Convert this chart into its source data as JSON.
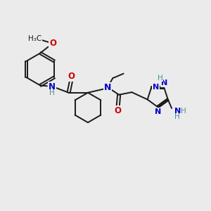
{
  "background_color": "#ebebeb",
  "bond_color": "#1a1a1a",
  "bond_width": 1.4,
  "figsize": [
    3.0,
    3.0
  ],
  "dpi": 100,
  "atom_colors": {
    "O": "#cc0000",
    "N": "#0000cc",
    "H_teal": "#4a9090",
    "C": "#1a1a1a"
  },
  "xlim": [
    0,
    10
  ],
  "ylim": [
    0,
    10
  ]
}
